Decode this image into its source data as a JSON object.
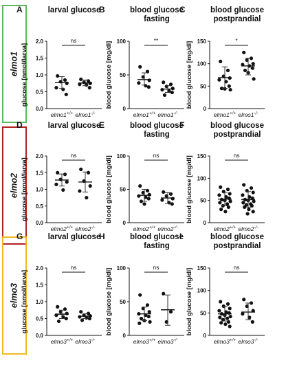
{
  "chart_data": [
    {
      "panel": "A",
      "gene": "elmo1",
      "type": "scatter",
      "title": "larval glucose",
      "ylabel": "glucose [nmol/larva]",
      "ylim": [
        0,
        2.0
      ],
      "yticks": [
        "0.0",
        "0.5",
        "1.0",
        "1.5",
        "2.0"
      ],
      "ytick_values": [
        0,
        0.5,
        1.0,
        1.5,
        2.0
      ],
      "categories": [
        "elmo1+/+",
        "elmo1-/-"
      ],
      "significance": "ns",
      "series": [
        {
          "points": [
            0.97,
            0.85,
            0.8,
            0.75,
            0.62,
            0.57,
            0.42
          ],
          "mean": 0.77,
          "sd_low": 0.6,
          "sd_high": 0.95
        },
        {
          "points": [
            0.87,
            0.82,
            0.78,
            0.75,
            0.72,
            0.7,
            0.62
          ],
          "mean": 0.76,
          "sd_low": 0.68,
          "sd_high": 0.85
        }
      ]
    },
    {
      "panel": "B",
      "type": "scatter",
      "title": "blood glucose fasting",
      "title_lines": [
        "blood glucose",
        "fasting"
      ],
      "ylabel": "blood glucose [mg/dl]",
      "ylim": [
        0,
        100
      ],
      "yticks": [
        "0",
        "50",
        "100"
      ],
      "ytick_values": [
        0,
        50,
        100
      ],
      "categories": [
        "elmo1+/+",
        "elmo1-/-"
      ],
      "significance": "**",
      "series": [
        {
          "points": [
            62,
            55,
            47,
            42,
            38,
            34,
            32
          ],
          "mean": 43,
          "sd_low": 35,
          "sd_high": 53
        },
        {
          "points": [
            39,
            36,
            33,
            30,
            28,
            26,
            24,
            20
          ],
          "mean": 29,
          "sd_low": 24,
          "sd_high": 34
        }
      ]
    },
    {
      "panel": "C",
      "type": "scatter",
      "title": "blood glucose postprandial",
      "title_lines": [
        "blood glucose",
        "postprandial"
      ],
      "ylabel": "blood glucose [mg/dl]",
      "ylim": [
        0,
        150
      ],
      "yticks": [
        "0",
        "50",
        "100",
        "150"
      ],
      "ytick_values": [
        0,
        50,
        100,
        150
      ],
      "categories": [
        "elmo1+/+",
        "elmo1-/-"
      ],
      "significance": "*",
      "series": [
        {
          "points": [
            105,
            85,
            72,
            68,
            64,
            60,
            50,
            45,
            44,
            42
          ],
          "mean": 69,
          "sd_low": 45,
          "sd_high": 93
        },
        {
          "points": [
            125,
            112,
            108,
            100,
            98,
            95,
            90,
            85,
            80,
            66
          ],
          "mean": 95,
          "sd_low": 75,
          "sd_high": 112
        }
      ]
    },
    {
      "panel": "D",
      "gene": "elmo2",
      "type": "scatter",
      "title": "larval glucose",
      "ylabel": "glucose [nmol/larva]",
      "ylim": [
        0,
        2.0
      ],
      "yticks": [
        "0.0",
        "0.5",
        "1.0",
        "1.5",
        "2.0"
      ],
      "ytick_values": [
        0,
        0.5,
        1.0,
        1.5,
        2.0
      ],
      "categories": [
        "elmo2+/+",
        "elmo2-/-"
      ],
      "significance": "ns",
      "series": [
        {
          "points": [
            1.5,
            1.45,
            1.3,
            1.22,
            1.15,
            0.98
          ],
          "mean": 1.28,
          "sd_low": 1.1,
          "sd_high": 1.46
        },
        {
          "points": [
            1.6,
            1.5,
            1.25,
            1.1,
            0.95,
            0.75
          ],
          "mean": 1.22,
          "sd_low": 0.92,
          "sd_high": 1.52
        }
      ]
    },
    {
      "panel": "E",
      "type": "scatter",
      "title": "blood glucose fasting",
      "title_lines": [
        "blood glucose",
        "fasting"
      ],
      "ylabel": "blood glucose [mg/dl]",
      "ylim": [
        0,
        100
      ],
      "yticks": [
        "0",
        "50",
        "100"
      ],
      "ytick_values": [
        0,
        50,
        100
      ],
      "categories": [
        "elmo2+/+",
        "elmo2-/-"
      ],
      "significance": "ns",
      "series": [
        {
          "points": [
            55,
            48,
            45,
            42,
            40,
            38,
            36,
            32,
            28
          ],
          "mean": 41,
          "sd_low": 32,
          "sd_high": 50
        },
        {
          "points": [
            46,
            43,
            40,
            36,
            34,
            30,
            28
          ],
          "mean": 37,
          "sd_low": 29,
          "sd_high": 45
        }
      ]
    },
    {
      "panel": "F",
      "type": "scatter",
      "title": "blood glucose postprandial",
      "title_lines": [
        "blood glucose",
        "postprandial"
      ],
      "ylabel": "blood glucose [mg/dl]",
      "ylim": [
        0,
        150
      ],
      "yticks": [
        "0",
        "50",
        "100",
        "150"
      ],
      "ytick_values": [
        0,
        50,
        100,
        150
      ],
      "categories": [
        "elmo2+/+",
        "elmo2-/-"
      ],
      "significance": "ns",
      "series": [
        {
          "points": [
            80,
            75,
            70,
            65,
            62,
            58,
            55,
            52,
            50,
            48,
            45,
            42,
            38,
            35,
            30,
            25
          ],
          "mean": 53,
          "sd_low": 38,
          "sd_high": 68
        },
        {
          "points": [
            85,
            78,
            72,
            68,
            62,
            58,
            55,
            52,
            50,
            48,
            45,
            42,
            40,
            38,
            35,
            30,
            25,
            20
          ],
          "mean": 52,
          "sd_low": 35,
          "sd_high": 70
        }
      ]
    },
    {
      "panel": "G",
      "gene": "elmo3",
      "type": "scatter",
      "title": "larval glucose",
      "ylabel": "glucose [nmol/larva]",
      "ylim": [
        0,
        2.0
      ],
      "yticks": [
        "0.0",
        "0.5",
        "1.0",
        "1.5",
        "2.0"
      ],
      "ytick_values": [
        0,
        0.5,
        1.0,
        1.5,
        2.0
      ],
      "categories": [
        "elmo3+/+",
        "elmo3-/-"
      ],
      "significance": "ns",
      "series": [
        {
          "points": [
            0.85,
            0.78,
            0.7,
            0.65,
            0.6,
            0.55,
            0.5,
            0.42
          ],
          "mean": 0.63,
          "sd_low": 0.5,
          "sd_high": 0.75
        },
        {
          "points": [
            0.7,
            0.65,
            0.6,
            0.58,
            0.55,
            0.52,
            0.5,
            0.45
          ],
          "mean": 0.57,
          "sd_low": 0.5,
          "sd_high": 0.64
        }
      ]
    },
    {
      "panel": "H",
      "type": "scatter",
      "title": "blood glucose fasting",
      "title_lines": [
        "blood glucose",
        "fasting"
      ],
      "ylabel": "blood glucose [mg/dl]",
      "ylim": [
        0,
        100
      ],
      "yticks": [
        "0",
        "50",
        "100"
      ],
      "ytick_values": [
        0,
        50,
        100
      ],
      "categories": [
        "elmo3+/+",
        "elmo3-/-"
      ],
      "significance": "ns",
      "series": [
        {
          "points": [
            60,
            45,
            40,
            35,
            32,
            30,
            28,
            25,
            22,
            20,
            18
          ],
          "mean": 32,
          "sd_low": 22,
          "sd_high": 42
        },
        {
          "points": [
            62,
            35,
            20
          ],
          "mean": 38,
          "sd_low": 15,
          "sd_high": 60
        }
      ]
    },
    {
      "panel": "I",
      "type": "scatter",
      "title": "blood glucose postprandial",
      "title_lines": [
        "blood glucose",
        "postprandial"
      ],
      "ylabel": "blood glucose [mg/dl]",
      "ylim": [
        0,
        150
      ],
      "yticks": [
        "0",
        "50",
        "100",
        "150"
      ],
      "ytick_values": [
        0,
        50,
        100,
        150
      ],
      "categories": [
        "elmo3+/+",
        "elmo3-/-"
      ],
      "significance": "ns",
      "series": [
        {
          "points": [
            75,
            70,
            65,
            60,
            55,
            52,
            50,
            48,
            45,
            42,
            40,
            38,
            35,
            30,
            28,
            25,
            20
          ],
          "mean": 48,
          "sd_low": 32,
          "sd_high": 64
        },
        {
          "points": [
            80,
            72,
            65,
            55,
            48,
            40,
            30
          ],
          "mean": 52,
          "sd_low": 35,
          "sd_high": 72
        }
      ]
    }
  ],
  "genes": [
    {
      "label": "elmo1",
      "color": "#5cb85c"
    },
    {
      "label": "elmo2",
      "color": "#b22222"
    },
    {
      "label": "elmo3",
      "color": "#f0b820"
    }
  ]
}
